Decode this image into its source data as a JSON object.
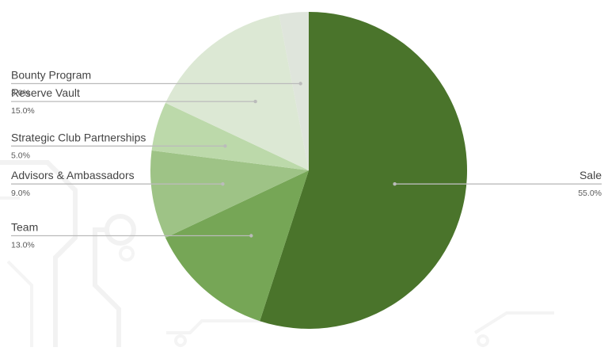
{
  "chart_data": {
    "type": "pie",
    "title": "",
    "legend": "none",
    "slices": [
      {
        "label": "Sale",
        "value": 55.0,
        "percent_label": "55.0%",
        "color": "#4a742b"
      },
      {
        "label": "Team",
        "value": 13.0,
        "percent_label": "13.0%",
        "color": "#76a656"
      },
      {
        "label": "Advisors & Ambassadors",
        "value": 9.0,
        "percent_label": "9.0%",
        "color": "#9ec386"
      },
      {
        "label": "Strategic Club Partnerships",
        "value": 5.0,
        "percent_label": "5.0%",
        "color": "#bcd9aa"
      },
      {
        "label": "Reserve Vault",
        "value": 15.0,
        "percent_label": "15.0%",
        "color": "#dce8d4"
      },
      {
        "label": "Bounty Program",
        "value": 3.0,
        "percent_label": "3.0%",
        "color": "#dfe5dc"
      }
    ]
  },
  "theme": {
    "label_color": "#444444",
    "percent_color": "#5a5a5a",
    "leader_color": "#bbbbbb"
  }
}
